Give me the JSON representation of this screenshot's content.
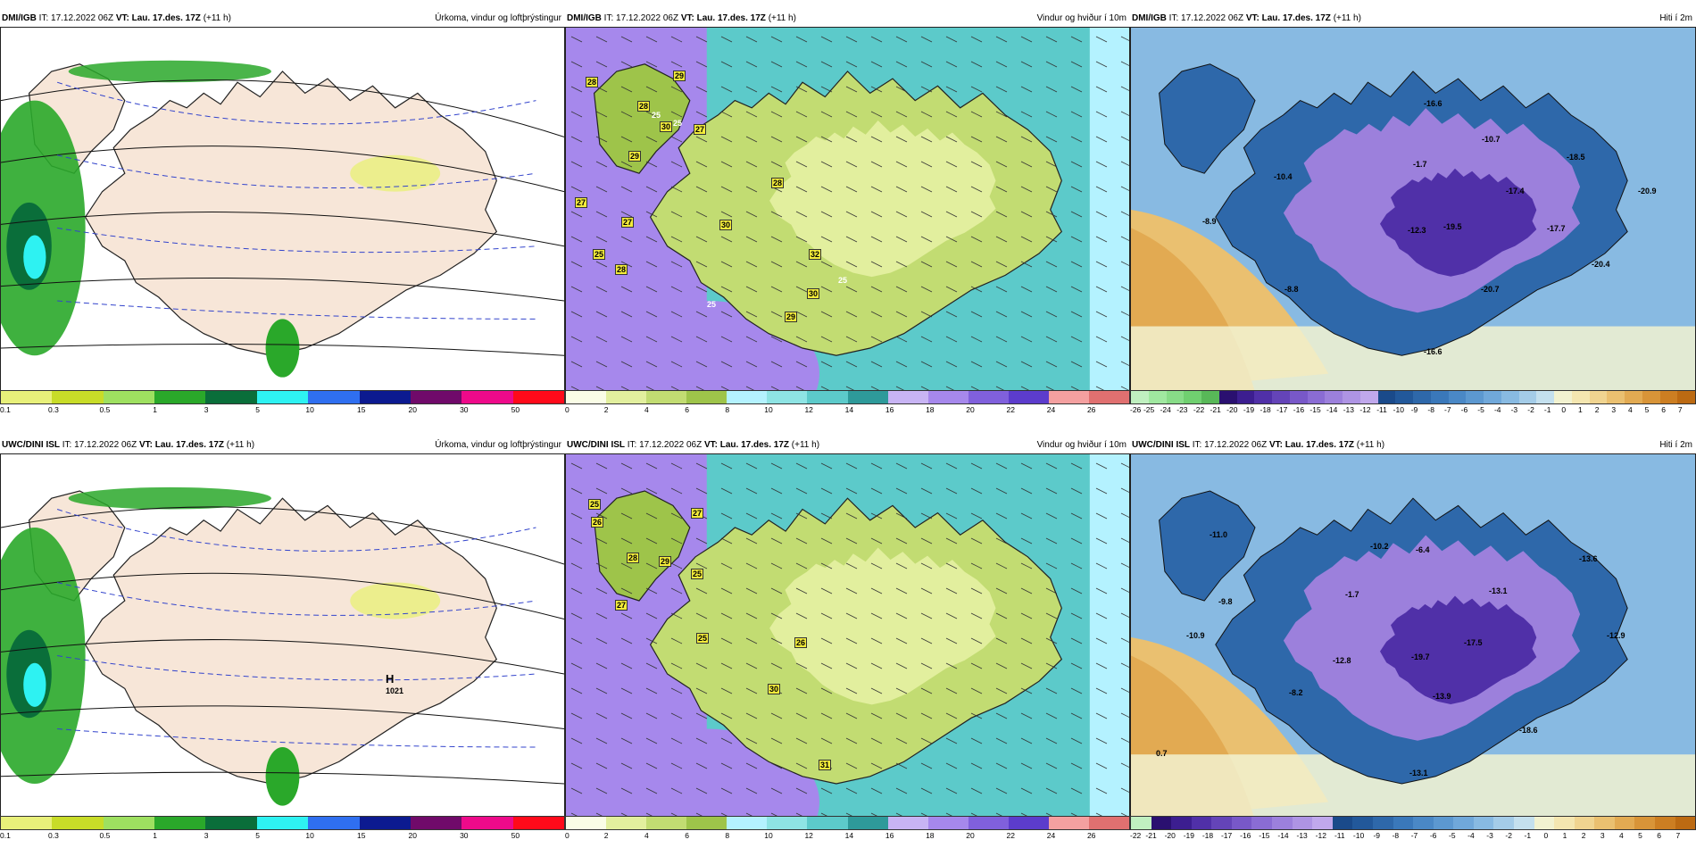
{
  "panels": [
    {
      "id": "p1",
      "model": "DMI/IGB",
      "it": "IT: 17.12.2022 06Z",
      "vt_label": "VT:",
      "vt": "Lau. 17.des. 17Z",
      "lead": "(+11 h)",
      "title": "Úrkoma, vindur og loftþrýstingur",
      "type": "precip",
      "colorbar": [
        "#e8f07a",
        "#c8dc28",
        "#9ee060",
        "#2aa82a",
        "#0a6e3a",
        "#2ef2f2",
        "#2f6ff0",
        "#0c1a90",
        "#700a6a",
        "#ee0a8a",
        "#ff0a1a"
      ],
      "ticks": [
        "0.1",
        "0.3",
        "0.5",
        "1",
        "3",
        "5",
        "10",
        "15",
        "20",
        "30",
        "50"
      ],
      "labels": []
    },
    {
      "id": "p2",
      "model": "DMI/IGB",
      "it": "IT: 17.12.2022 06Z",
      "vt_label": "VT:",
      "vt": "Lau. 17.des. 17Z",
      "lead": "(+11 h)",
      "title": "Vindur og hviður í 10m",
      "type": "wind",
      "colorbar": [
        "#fafde6",
        "#e2ef9e",
        "#c2dc72",
        "#9ec44a",
        "#b4f2ff",
        "#8ee4e4",
        "#5ccaca",
        "#2e9a9a",
        "#c8b4f4",
        "#a688ec",
        "#8060dc",
        "#5c3ccc",
        "#f4a0a0",
        "#e07070"
      ],
      "ticks": [
        "0",
        "2",
        "4",
        "6",
        "8",
        "10",
        "12",
        "14",
        "16",
        "18",
        "20",
        "22",
        "24",
        "26"
      ],
      "labels": [
        "28",
        "29",
        "28",
        "30",
        "27",
        "25",
        "29",
        "25",
        "27",
        "27",
        "28",
        "25",
        "30",
        "28",
        "32",
        "25",
        "30",
        "29",
        "25"
      ]
    },
    {
      "id": "p3",
      "model": "DMI/IGB",
      "it": "IT: 17.12.2022 06Z",
      "vt_label": "VT:",
      "vt": "Lau. 17.des. 17Z",
      "lead": "(+11 h)",
      "title": "Hiti í 2m",
      "type": "temp",
      "colorbar": [
        "#c0f0c0",
        "#a0e8a0",
        "#88dc88",
        "#70d070",
        "#58b858",
        "#2a1070",
        "#3c1e90",
        "#5030a8",
        "#6444b8",
        "#7858c8",
        "#8a6cd4",
        "#9c80dc",
        "#ae94e4",
        "#c0a8ec",
        "#1a4a8a",
        "#22589a",
        "#2e68aa",
        "#3a78ba",
        "#4a88c6",
        "#5c98d0",
        "#70a8da",
        "#88bae2",
        "#a4cce8",
        "#c4e0ee",
        "#f2f2d0",
        "#f4e6b0",
        "#f0d490",
        "#eac070",
        "#e2aa52",
        "#d89438",
        "#cc7e22",
        "#bc6a12"
      ],
      "ticks": [
        "-26",
        "-25",
        "-24",
        "-23",
        "-22",
        "-21",
        "-20",
        "-19",
        "-18",
        "-17",
        "-16",
        "-15",
        "-14",
        "-13",
        "-12",
        "-11",
        "-10",
        "-9",
        "-8",
        "-7",
        "-6",
        "-5",
        "-4",
        "-3",
        "-2",
        "-1",
        "0",
        "1",
        "2",
        "3",
        "4",
        "5",
        "6",
        "7"
      ],
      "labels": [
        "-16.6",
        "-10.7",
        "-18.5",
        "-10.4",
        "-1.7",
        "-17.4",
        "-20.9",
        "-8.9",
        "-12.3",
        "-19.5",
        "-17.7",
        "-20.4",
        "-8.8",
        "-20.7",
        "-16.6"
      ]
    },
    {
      "id": "p4",
      "model": "UWC/DINI ISL",
      "it": "IT: 17.12.2022 06Z",
      "vt_label": "VT:",
      "vt": "Lau. 17.des. 17Z",
      "lead": "(+11 h)",
      "title": "Úrkoma, vindur og loftþrýstingur",
      "type": "precip",
      "colorbar": [
        "#e8f07a",
        "#c8dc28",
        "#9ee060",
        "#2aa82a",
        "#0a6e3a",
        "#2ef2f2",
        "#2f6ff0",
        "#0c1a90",
        "#700a6a",
        "#ee0a8a",
        "#ff0a1a"
      ],
      "ticks": [
        "0.1",
        "0.3",
        "0.5",
        "1",
        "3",
        "5",
        "10",
        "15",
        "20",
        "30",
        "50"
      ],
      "labels": [
        "H",
        "1021"
      ]
    },
    {
      "id": "p5",
      "model": "UWC/DINI ISL",
      "it": "IT: 17.12.2022 06Z",
      "vt_label": "VT:",
      "vt": "Lau. 17.des. 17Z",
      "lead": "(+11 h)",
      "title": "Vindur og hviður í 10m",
      "type": "wind",
      "colorbar": [
        "#fafde6",
        "#e2ef9e",
        "#c2dc72",
        "#9ec44a",
        "#b4f2ff",
        "#8ee4e4",
        "#5ccaca",
        "#2e9a9a",
        "#c8b4f4",
        "#a688ec",
        "#8060dc",
        "#5c3ccc",
        "#f4a0a0",
        "#e07070"
      ],
      "ticks": [
        "0",
        "2",
        "4",
        "6",
        "8",
        "10",
        "12",
        "14",
        "16",
        "18",
        "20",
        "22",
        "24",
        "26"
      ],
      "labels": [
        "25",
        "26",
        "27",
        "28",
        "29",
        "25",
        "27",
        "25",
        "26",
        "30",
        "31"
      ]
    },
    {
      "id": "p6",
      "model": "UWC/DINI ISL",
      "it": "IT: 17.12.2022 06Z",
      "vt_label": "VT:",
      "vt": "Lau. 17.des. 17Z",
      "lead": "(+11 h)",
      "title": "Hiti í 2m",
      "type": "temp",
      "colorbar": [
        "#c0f0c0",
        "#2a1070",
        "#3c1e90",
        "#5030a8",
        "#6444b8",
        "#7858c8",
        "#8a6cd4",
        "#9c80dc",
        "#ae94e4",
        "#c0a8ec",
        "#1a4a8a",
        "#22589a",
        "#2e68aa",
        "#3a78ba",
        "#4a88c6",
        "#5c98d0",
        "#70a8da",
        "#88bae2",
        "#a4cce8",
        "#c4e0ee",
        "#f2f2d0",
        "#f4e6b0",
        "#f0d490",
        "#eac070",
        "#e2aa52",
        "#d89438",
        "#cc7e22",
        "#bc6a12"
      ],
      "ticks": [
        "-22",
        "-21",
        "-20",
        "-19",
        "-18",
        "-17",
        "-16",
        "-15",
        "-14",
        "-13",
        "-12",
        "-11",
        "-10",
        "-9",
        "-8",
        "-7",
        "-6",
        "-5",
        "-4",
        "-3",
        "-2",
        "-1",
        "0",
        "1",
        "2",
        "3",
        "4",
        "5",
        "6",
        "7"
      ],
      "labels": [
        "-11.0",
        "-10.2",
        "-6.4",
        "-13.6",
        "-9.8",
        "-1.7",
        "-13.1",
        "-10.9",
        "-12.8",
        "-19.7",
        "-17.5",
        "-12.9",
        "-8.2",
        "-13.9",
        "-18.6",
        "0.7",
        "-13.1"
      ]
    }
  ]
}
